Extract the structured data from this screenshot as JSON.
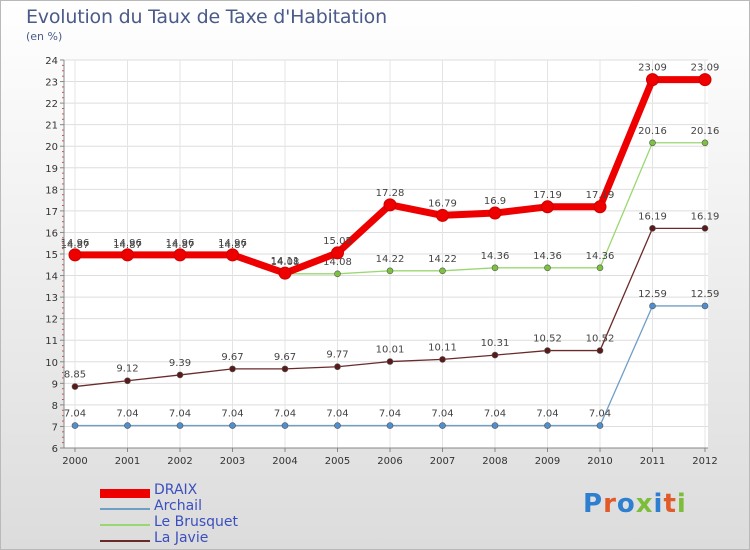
{
  "header": {
    "title": "Evolution du Taux de Taxe d'Habitation",
    "subtitle": "(en %)"
  },
  "brand": {
    "logo_text": "Proxiti",
    "letter_colors": [
      "#2e7fd0",
      "#e05a2a",
      "#2e7fd0",
      "#7cbd3a",
      "#2e7fd0",
      "#e05a2a",
      "#7cbd3a"
    ]
  },
  "chart_data": {
    "type": "line",
    "title": "Evolution du Taux de Taxe d'Habitation",
    "ylabel": "(en %)",
    "xlabel": "",
    "categories": [
      "2000",
      "2001",
      "2002",
      "2003",
      "2004",
      "2005",
      "2006",
      "2007",
      "2008",
      "2009",
      "2010",
      "2011",
      "2012"
    ],
    "ylim": [
      6,
      24
    ],
    "yticks": [
      6,
      7,
      8,
      9,
      10,
      11,
      12,
      13,
      14,
      15,
      16,
      17,
      18,
      19,
      20,
      21,
      22,
      23,
      24
    ],
    "grid": true,
    "legend_position": "bottom-left",
    "series": [
      {
        "name": "Archail",
        "color": "#6f9ec6",
        "dot": "#4f8fd0",
        "values": [
          7.04,
          7.04,
          7.04,
          7.04,
          7.04,
          7.04,
          7.04,
          7.04,
          7.04,
          7.04,
          7.04,
          12.59,
          12.59
        ],
        "labels": [
          "7.04",
          "7.04",
          "7.04",
          "7.04",
          "7.04",
          "7.04",
          "7.04",
          "7.04",
          "7.04",
          "7.04",
          "7.04",
          "12.59",
          "12.59"
        ]
      },
      {
        "name": "La Javie",
        "color": "#6b2a2a",
        "dot": "#5a1a1a",
        "values": [
          8.85,
          9.12,
          9.39,
          9.67,
          9.67,
          9.77,
          10.01,
          10.11,
          10.31,
          10.52,
          10.52,
          16.19,
          16.19
        ],
        "labels": [
          "8.85",
          "9.12",
          "9.39",
          "9.67",
          "9.67",
          "9.77",
          "10.01",
          "10.11",
          "10.31",
          "10.52",
          "10.52",
          "16.19",
          "16.19"
        ]
      },
      {
        "name": "Le Brusquet",
        "color": "#99d870",
        "dot": "#7cc23f",
        "values": [
          14.87,
          14.87,
          14.87,
          14.87,
          14.08,
          14.08,
          14.22,
          14.22,
          14.36,
          14.36,
          14.36,
          20.16,
          20.16
        ],
        "labels": [
          "14.87",
          "14.87",
          "14.87",
          "14.87",
          "14.08",
          "14.08",
          "14.22",
          "14.22",
          "14.36",
          "14.36",
          "14.36",
          "20.16",
          "20.16"
        ]
      },
      {
        "name": "DRAIX",
        "color": "#ee0000",
        "dot": "#ee0000",
        "values": [
          14.96,
          14.96,
          14.96,
          14.96,
          14.11,
          15.05,
          17.28,
          16.79,
          16.9,
          17.19,
          17.19,
          23.09,
          23.09
        ],
        "labels": [
          "14.96",
          "14.96",
          "14.96",
          "14.96",
          "14.11",
          "15.05",
          "17.28",
          "16.79",
          "16.9",
          "17.19",
          "17.19",
          "23.09",
          "23.09"
        ]
      }
    ],
    "legend_order": [
      "DRAIX",
      "Archail",
      "Le Brusquet",
      "La Javie"
    ]
  }
}
